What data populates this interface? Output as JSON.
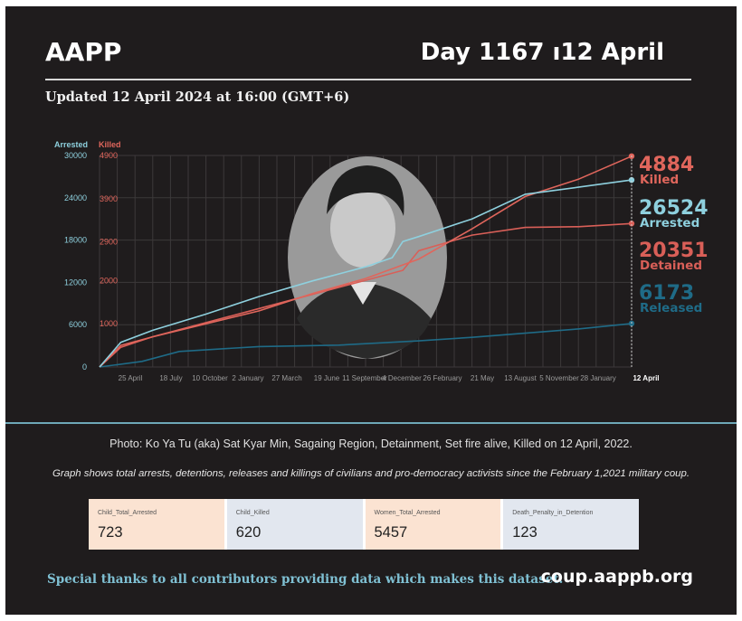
{
  "header": {
    "brand": "AAPP",
    "day_label": "Day 1167 ı12 April",
    "updated": "Updated 12 April 2024 at 16:00 (GMT+6)"
  },
  "colors": {
    "background": "#1f1c1d",
    "arrested": "#8ed0de",
    "killed": "#e0665c",
    "detained": "#d95f58",
    "released": "#1f6b87",
    "divider": "#6ea8b8"
  },
  "chart_data": {
    "type": "line",
    "x_start_label": "",
    "x_end_label": "12 April",
    "x_tick_labels": [
      "25 April",
      "18 July",
      "10 October",
      "2 January",
      "27 March",
      "19 June",
      "11 September",
      "4 December",
      "26 February",
      "21 May",
      "13 August",
      "5 November",
      "28 January"
    ],
    "y_axis_left": {
      "label": "Arrested",
      "ticks": [
        0,
        6000,
        12000,
        18000,
        24000,
        30000
      ],
      "tick_labels": [
        "0",
        "6000",
        "12000",
        "18000",
        "24000",
        "30000"
      ],
      "ylim": [
        0,
        30000
      ]
    },
    "y_axis_right": {
      "label": "Killed",
      "ticks": [
        1000,
        2000,
        2900,
        3900,
        4900
      ],
      "tick_labels": [
        "1000",
        "2000",
        "2900",
        "3900",
        "4900"
      ],
      "ylim": [
        0,
        4900
      ]
    },
    "grid": true,
    "series": [
      {
        "name": "Arrested",
        "axis": "left",
        "color": "#8ed0de",
        "final_value": "26524",
        "final_label": "Arrested",
        "points": [
          [
            0,
            0
          ],
          [
            0.04,
            3500
          ],
          [
            0.1,
            5200
          ],
          [
            0.2,
            7500
          ],
          [
            0.3,
            10000
          ],
          [
            0.4,
            12200
          ],
          [
            0.5,
            14200
          ],
          [
            0.55,
            15500
          ],
          [
            0.57,
            17800
          ],
          [
            0.6,
            18500
          ],
          [
            0.7,
            21000
          ],
          [
            0.8,
            24500
          ],
          [
            0.9,
            25500
          ],
          [
            1.0,
            26524
          ]
        ]
      },
      {
        "name": "Killed",
        "axis": "right",
        "color": "#e0665c",
        "final_value": "4884",
        "final_label": "Killed",
        "points": [
          [
            0,
            0
          ],
          [
            0.04,
            500
          ],
          [
            0.1,
            700
          ],
          [
            0.2,
            1000
          ],
          [
            0.3,
            1300
          ],
          [
            0.4,
            1700
          ],
          [
            0.5,
            2050
          ],
          [
            0.6,
            2500
          ],
          [
            0.7,
            3200
          ],
          [
            0.8,
            3950
          ],
          [
            0.9,
            4350
          ],
          [
            1.0,
            4884
          ]
        ]
      },
      {
        "name": "Detained",
        "axis": "left",
        "color": "#d95f58",
        "final_value": "20351",
        "final_label": "Detained",
        "points": [
          [
            0,
            0
          ],
          [
            0.04,
            2800
          ],
          [
            0.1,
            4300
          ],
          [
            0.2,
            6300
          ],
          [
            0.3,
            8300
          ],
          [
            0.4,
            10300
          ],
          [
            0.5,
            12300
          ],
          [
            0.57,
            13700
          ],
          [
            0.6,
            16500
          ],
          [
            0.7,
            18700
          ],
          [
            0.8,
            19800
          ],
          [
            0.9,
            19900
          ],
          [
            1.0,
            20351
          ]
        ]
      },
      {
        "name": "Released",
        "axis": "left",
        "color": "#1f6b87",
        "final_value": "6173",
        "final_label": "Released",
        "points": [
          [
            0,
            0
          ],
          [
            0.08,
            800
          ],
          [
            0.15,
            2200
          ],
          [
            0.3,
            2900
          ],
          [
            0.45,
            3100
          ],
          [
            0.6,
            3700
          ],
          [
            0.7,
            4200
          ],
          [
            0.8,
            4800
          ],
          [
            0.9,
            5400
          ],
          [
            1.0,
            6173
          ]
        ]
      }
    ]
  },
  "photo_caption": "Photo: Ko Ya Tu (aka) Sat Kyar Min, Sagaing Region, Detainment, Set fire alive, Killed on 12 April, 2022.",
  "note": "Graph shows total arrests, detentions, releases and killings of civilians and pro-democracy activists since the February 1,2021 military coup.",
  "stats": [
    {
      "label": "Child_Total_Arrested",
      "value": "723",
      "bg": "#fbe3d2"
    },
    {
      "label": "Child_Killed",
      "value": "620",
      "bg": "#e2e7ef"
    },
    {
      "label": "Women_Total_Arrested",
      "value": "5457",
      "bg": "#fbe3d2"
    },
    {
      "label": "Death_Penalty_in_Detention",
      "value": "123",
      "bg": "#e2e7ef"
    }
  ],
  "footer": {
    "thanks": "Special thanks to all contributors providing data which makes this dataset.",
    "site": "coup.aappb.org"
  }
}
